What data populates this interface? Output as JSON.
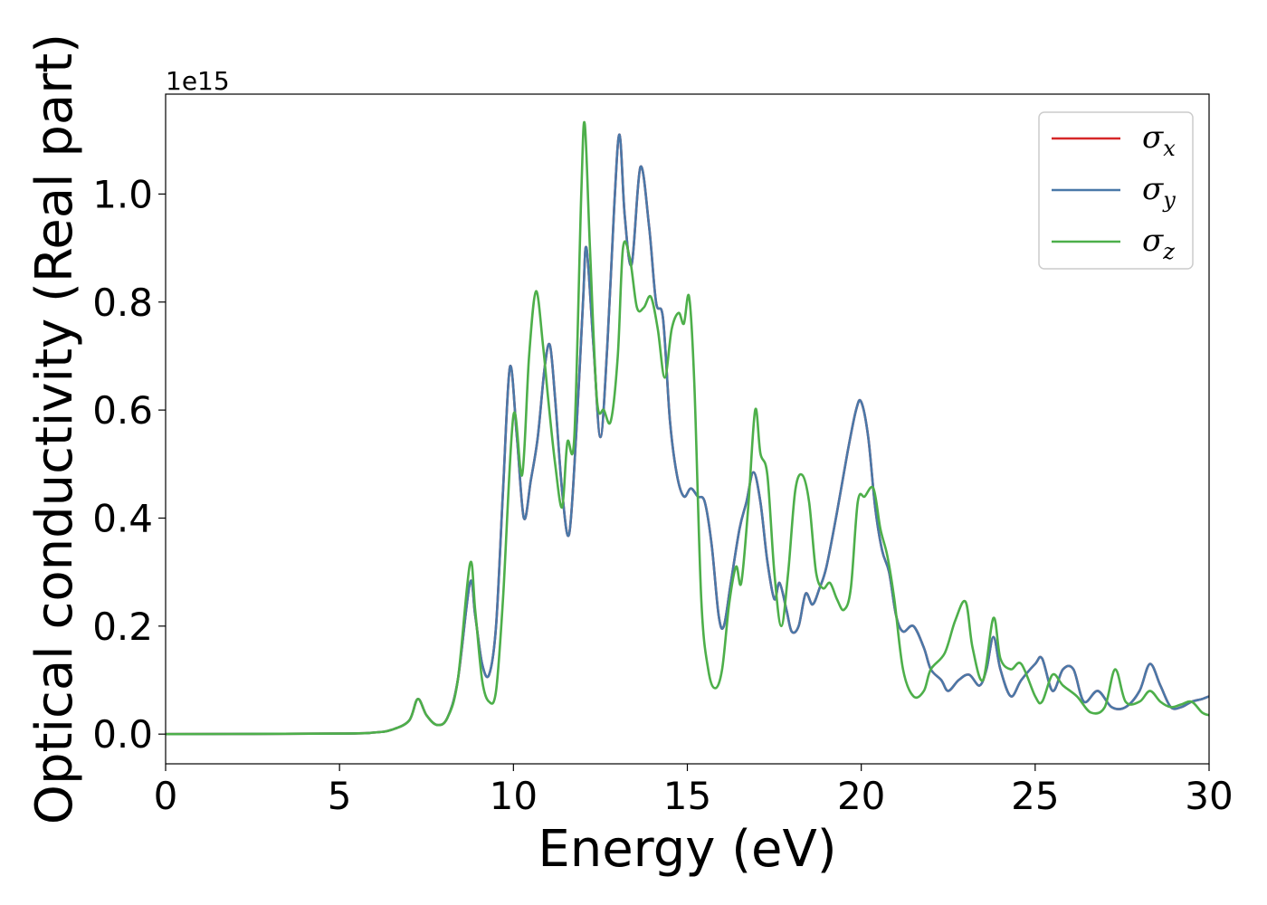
{
  "chart_data": {
    "type": "line",
    "title": "",
    "xlabel": "Energy (eV)",
    "ylabel": "Optical conductivity (Real part)",
    "y_offset_label": "1e15",
    "xlim": [
      0,
      30
    ],
    "ylim": [
      -0.055,
      1.185
    ],
    "x_ticks": [
      0,
      5,
      10,
      15,
      20,
      25,
      30
    ],
    "x_tick_labels": [
      "0",
      "5",
      "10",
      "15",
      "20",
      "25",
      "30"
    ],
    "y_ticks": [
      0.0,
      0.2,
      0.4,
      0.6,
      0.8,
      1.0
    ],
    "y_tick_labels": [
      "0.0",
      "0.2",
      "0.4",
      "0.6",
      "0.8",
      "1.0"
    ],
    "grid": false,
    "legend_position": "top-right",
    "series": [
      {
        "name": "σx",
        "legend_symbol": "σ",
        "legend_sub": "x",
        "color": "#d62728",
        "x": [
          0,
          5,
          6,
          6.5,
          7.0,
          7.25,
          7.5,
          7.8,
          8.1,
          8.4,
          8.75,
          8.9,
          9.1,
          9.3,
          9.5,
          9.7,
          9.9,
          10.1,
          10.3,
          10.5,
          10.7,
          10.9,
          11.05,
          11.2,
          11.4,
          11.6,
          11.8,
          12.0,
          12.1,
          12.3,
          12.5,
          12.7,
          12.9,
          13.05,
          13.2,
          13.4,
          13.65,
          13.9,
          14.1,
          14.3,
          14.5,
          14.7,
          14.9,
          15.1,
          15.3,
          15.5,
          15.7,
          15.9,
          16.05,
          16.25,
          16.5,
          16.7,
          16.9,
          17.1,
          17.3,
          17.5,
          17.65,
          17.85,
          18.0,
          18.2,
          18.4,
          18.6,
          18.8,
          19.0,
          19.3,
          19.6,
          19.85,
          20.0,
          20.2,
          20.4,
          20.6,
          20.8,
          21.0,
          21.2,
          21.5,
          21.8,
          22.0,
          22.3,
          22.5,
          22.8,
          23.1,
          23.4,
          23.6,
          23.8,
          24.0,
          24.3,
          24.6,
          25.0,
          25.2,
          25.5,
          25.8,
          26.1,
          26.4,
          26.8,
          27.2,
          27.6,
          28.0,
          28.3,
          28.6,
          28.9,
          29.2,
          29.5,
          29.8,
          30.0
        ],
        "values": [
          0,
          0.001,
          0.003,
          0.008,
          0.025,
          0.065,
          0.035,
          0.017,
          0.03,
          0.1,
          0.28,
          0.22,
          0.13,
          0.11,
          0.2,
          0.45,
          0.68,
          0.55,
          0.4,
          0.47,
          0.55,
          0.68,
          0.72,
          0.62,
          0.45,
          0.37,
          0.55,
          0.8,
          0.9,
          0.72,
          0.55,
          0.72,
          0.98,
          1.11,
          0.96,
          0.87,
          1.05,
          0.94,
          0.8,
          0.77,
          0.58,
          0.48,
          0.44,
          0.455,
          0.44,
          0.43,
          0.35,
          0.22,
          0.2,
          0.28,
          0.38,
          0.43,
          0.485,
          0.43,
          0.32,
          0.25,
          0.28,
          0.23,
          0.19,
          0.2,
          0.26,
          0.24,
          0.27,
          0.31,
          0.41,
          0.52,
          0.6,
          0.615,
          0.55,
          0.42,
          0.34,
          0.3,
          0.22,
          0.19,
          0.2,
          0.16,
          0.12,
          0.1,
          0.08,
          0.1,
          0.11,
          0.09,
          0.12,
          0.18,
          0.12,
          0.07,
          0.1,
          0.13,
          0.14,
          0.08,
          0.12,
          0.12,
          0.06,
          0.08,
          0.05,
          0.05,
          0.08,
          0.13,
          0.09,
          0.05,
          0.05,
          0.06,
          0.065,
          0.07
        ]
      },
      {
        "name": "σy",
        "legend_symbol": "σ",
        "legend_sub": "y",
        "color": "#4a78a8",
        "x": [
          0,
          5,
          6,
          6.5,
          7.0,
          7.25,
          7.5,
          7.8,
          8.1,
          8.4,
          8.75,
          8.9,
          9.1,
          9.3,
          9.5,
          9.7,
          9.9,
          10.1,
          10.3,
          10.5,
          10.7,
          10.9,
          11.05,
          11.2,
          11.4,
          11.6,
          11.8,
          12.0,
          12.1,
          12.3,
          12.5,
          12.7,
          12.9,
          13.05,
          13.2,
          13.4,
          13.65,
          13.9,
          14.1,
          14.3,
          14.5,
          14.7,
          14.9,
          15.1,
          15.3,
          15.5,
          15.7,
          15.9,
          16.05,
          16.25,
          16.5,
          16.7,
          16.9,
          17.1,
          17.3,
          17.5,
          17.65,
          17.85,
          18.0,
          18.2,
          18.4,
          18.6,
          18.8,
          19.0,
          19.3,
          19.6,
          19.85,
          20.0,
          20.2,
          20.4,
          20.6,
          20.8,
          21.0,
          21.2,
          21.5,
          21.8,
          22.0,
          22.3,
          22.5,
          22.8,
          23.1,
          23.4,
          23.6,
          23.8,
          24.0,
          24.3,
          24.6,
          25.0,
          25.2,
          25.5,
          25.8,
          26.1,
          26.4,
          26.8,
          27.2,
          27.6,
          28.0,
          28.3,
          28.6,
          28.9,
          29.2,
          29.5,
          29.8,
          30.0
        ],
        "values": [
          0,
          0.001,
          0.003,
          0.008,
          0.025,
          0.065,
          0.035,
          0.017,
          0.03,
          0.1,
          0.28,
          0.22,
          0.13,
          0.11,
          0.2,
          0.45,
          0.68,
          0.55,
          0.4,
          0.47,
          0.55,
          0.68,
          0.72,
          0.62,
          0.45,
          0.37,
          0.55,
          0.8,
          0.9,
          0.72,
          0.55,
          0.72,
          0.98,
          1.11,
          0.96,
          0.87,
          1.05,
          0.94,
          0.8,
          0.77,
          0.58,
          0.48,
          0.44,
          0.455,
          0.44,
          0.43,
          0.35,
          0.22,
          0.2,
          0.28,
          0.38,
          0.43,
          0.485,
          0.43,
          0.32,
          0.25,
          0.28,
          0.23,
          0.19,
          0.2,
          0.26,
          0.24,
          0.27,
          0.31,
          0.41,
          0.52,
          0.6,
          0.615,
          0.55,
          0.42,
          0.34,
          0.3,
          0.22,
          0.19,
          0.2,
          0.16,
          0.12,
          0.1,
          0.08,
          0.1,
          0.11,
          0.09,
          0.12,
          0.18,
          0.12,
          0.07,
          0.1,
          0.13,
          0.14,
          0.08,
          0.12,
          0.12,
          0.06,
          0.08,
          0.05,
          0.05,
          0.08,
          0.13,
          0.09,
          0.05,
          0.05,
          0.06,
          0.065,
          0.07
        ]
      },
      {
        "name": "σz",
        "legend_symbol": "σ",
        "legend_sub": "z",
        "color": "#4daf4a",
        "x": [
          0,
          5,
          6,
          6.5,
          7.0,
          7.25,
          7.5,
          7.8,
          8.1,
          8.4,
          8.75,
          8.9,
          9.1,
          9.3,
          9.5,
          9.7,
          10.0,
          10.25,
          10.45,
          10.65,
          10.85,
          11.0,
          11.2,
          11.4,
          11.55,
          11.75,
          11.95,
          12.05,
          12.2,
          12.4,
          12.6,
          12.8,
          13.0,
          13.15,
          13.35,
          13.55,
          13.75,
          13.95,
          14.15,
          14.35,
          14.55,
          14.75,
          14.9,
          15.05,
          15.2,
          15.4,
          15.6,
          15.8,
          16.0,
          16.2,
          16.4,
          16.55,
          16.75,
          16.95,
          17.1,
          17.3,
          17.5,
          17.7,
          17.9,
          18.1,
          18.3,
          18.5,
          18.7,
          18.9,
          19.1,
          19.3,
          19.5,
          19.7,
          19.9,
          20.1,
          20.35,
          20.55,
          20.75,
          20.95,
          21.2,
          21.5,
          21.8,
          22.0,
          22.4,
          22.7,
          23.0,
          23.2,
          23.5,
          23.8,
          24.0,
          24.3,
          24.6,
          25.0,
          25.2,
          25.5,
          25.8,
          26.2,
          26.6,
          27.0,
          27.3,
          27.6,
          28.0,
          28.3,
          28.6,
          28.9,
          29.2,
          29.5,
          29.8,
          30.0
        ],
        "values": [
          0,
          0.001,
          0.003,
          0.008,
          0.025,
          0.065,
          0.035,
          0.017,
          0.03,
          0.1,
          0.315,
          0.23,
          0.1,
          0.06,
          0.08,
          0.25,
          0.59,
          0.48,
          0.7,
          0.82,
          0.72,
          0.62,
          0.5,
          0.42,
          0.54,
          0.55,
          1.0,
          1.13,
          0.9,
          0.62,
          0.6,
          0.58,
          0.7,
          0.9,
          0.88,
          0.79,
          0.79,
          0.81,
          0.75,
          0.66,
          0.75,
          0.78,
          0.76,
          0.81,
          0.65,
          0.25,
          0.12,
          0.085,
          0.12,
          0.24,
          0.31,
          0.28,
          0.42,
          0.6,
          0.52,
          0.48,
          0.3,
          0.2,
          0.3,
          0.45,
          0.48,
          0.43,
          0.3,
          0.27,
          0.28,
          0.25,
          0.23,
          0.27,
          0.43,
          0.44,
          0.455,
          0.38,
          0.33,
          0.25,
          0.12,
          0.07,
          0.08,
          0.12,
          0.15,
          0.21,
          0.245,
          0.16,
          0.1,
          0.215,
          0.14,
          0.12,
          0.13,
          0.07,
          0.06,
          0.11,
          0.09,
          0.07,
          0.04,
          0.05,
          0.12,
          0.06,
          0.06,
          0.08,
          0.06,
          0.05,
          0.055,
          0.06,
          0.04,
          0.035
        ]
      }
    ]
  }
}
